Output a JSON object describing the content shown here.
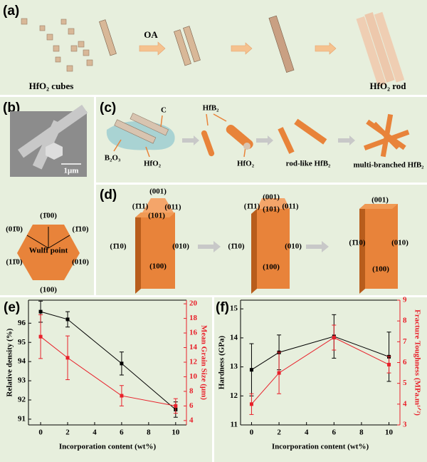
{
  "panels": {
    "a": {
      "label": "(a)",
      "cubes": "HfO₂ cubes",
      "oa": "OA",
      "rod": "HfO₂ rod"
    },
    "b": {
      "label": "(b)",
      "scale": "1μm",
      "wulff": "Wulff point",
      "facets": [
        "(1̄00)",
        "(01̄0)",
        "(1̄10)",
        "(11̄0)",
        "(010)",
        "(100)"
      ]
    },
    "c": {
      "label": "(c)",
      "carbon": "C",
      "b2o3": "B₂O₃",
      "hfo2_left": "HfO₂",
      "hfb2": "HfB₂",
      "hfo2_right": "HfO₂",
      "rod_like": "rod-like  HfB₂",
      "multi": "multi-branched  HfB₂"
    },
    "d": {
      "label": "(d)",
      "rods": [
        {
          "facets": [
            "(001)",
            "(1̄11)",
            "(011)",
            "(101)",
            "(1̄10)",
            "(010)",
            "(100)"
          ]
        },
        {
          "facets": [
            "(001)",
            "(1̄11)",
            "(011)",
            "(101)",
            "(1̄10)",
            "(010)",
            "(100)"
          ]
        },
        {
          "facets": [
            "(001)",
            "(1̄10)",
            "(010)",
            "(100)"
          ]
        }
      ]
    }
  },
  "chart_data": [
    {
      "type": "line",
      "panel_label": "(e)",
      "xlabel": "Incorporation content (wt%)",
      "ylabel": "Relative density (%)",
      "y2label": "Mean Grain Size  (μm)",
      "x": [
        0,
        2,
        6,
        10
      ],
      "xlim": [
        -0.9,
        10.8
      ],
      "xticks": [
        0,
        2,
        4,
        6,
        8,
        10
      ],
      "ylim": [
        90.7,
        97.2
      ],
      "yticks": [
        91,
        92,
        93,
        94,
        95,
        96
      ],
      "y2lim": [
        3.4,
        20.5
      ],
      "y2ticks": [
        4,
        6,
        8,
        10,
        12,
        14,
        16,
        18,
        20
      ],
      "series": [
        {
          "color": "#000000",
          "values": [
            96.6,
            96.2,
            93.9,
            91.5
          ],
          "errors": [
            0.55,
            0.4,
            0.6,
            0.4
          ]
        },
        {
          "color": "#e8202a",
          "axis": "y2",
          "values": [
            15.5,
            12.6,
            7.4,
            6.0
          ],
          "errors": [
            3.0,
            3.0,
            1.4,
            1.0
          ]
        }
      ]
    },
    {
      "type": "line",
      "panel_label": "(f)",
      "xlabel": "Incorporation content (wt%)",
      "ylabel": "Hardness (GPa)",
      "y2label": "Fracture Toughness (MPa.m¹ᐟ²)",
      "x": [
        0,
        2,
        6,
        10
      ],
      "xlim": [
        -0.8,
        10.8
      ],
      "xticks": [
        0,
        2,
        4,
        6,
        8,
        10
      ],
      "ylim": [
        11,
        15.3
      ],
      "yticks": [
        11,
        12,
        13,
        14,
        15
      ],
      "y2lim": [
        3,
        9
      ],
      "y2ticks": [
        3,
        4,
        5,
        6,
        7,
        8,
        9
      ],
      "series": [
        {
          "color": "#000000",
          "values": [
            12.9,
            13.5,
            14.05,
            13.35
          ],
          "errors": [
            0.9,
            0.6,
            0.75,
            0.85
          ]
        },
        {
          "color": "#e8202a",
          "axis": "y2",
          "values": [
            4.0,
            5.5,
            7.2,
            5.9
          ],
          "errors": [
            0.5,
            1.0,
            0.6,
            0.4
          ]
        }
      ]
    }
  ]
}
